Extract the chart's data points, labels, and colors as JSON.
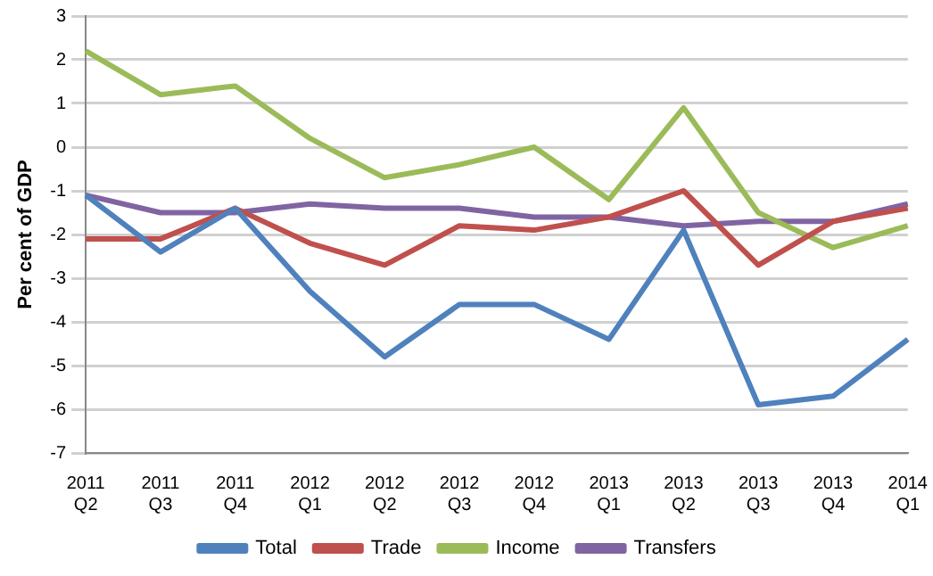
{
  "chart_data": {
    "type": "line",
    "ylabel": "Per cent of GDP",
    "categories": [
      "2011 Q2",
      "2011 Q3",
      "2011 Q4",
      "2012 Q1",
      "2012 Q2",
      "2012 Q3",
      "2012 Q4",
      "2013 Q1",
      "2013 Q2",
      "2013 Q3",
      "2013 Q4",
      "2014 Q1"
    ],
    "series": [
      {
        "name": "Total",
        "color": "#4f81bd",
        "values": [
          -1.1,
          -2.4,
          -1.4,
          -3.3,
          -4.8,
          -3.6,
          -3.6,
          -4.4,
          -1.9,
          -5.9,
          -5.7,
          -4.4
        ]
      },
      {
        "name": "Trade",
        "color": "#c0504d",
        "values": [
          -2.1,
          -2.1,
          -1.4,
          -2.2,
          -2.7,
          -1.8,
          -1.9,
          -1.6,
          -1.0,
          -2.7,
          -1.7,
          -1.4
        ]
      },
      {
        "name": "Income",
        "color": "#9bbb59",
        "values": [
          2.2,
          1.2,
          1.4,
          0.2,
          -0.7,
          -0.4,
          0.0,
          -1.2,
          0.9,
          -1.5,
          -2.3,
          -1.8
        ]
      },
      {
        "name": "Transfers",
        "color": "#8064a2",
        "values": [
          -1.1,
          -1.5,
          -1.5,
          -1.3,
          -1.4,
          -1.4,
          -1.6,
          -1.6,
          -1.8,
          -1.7,
          -1.7,
          -1.3
        ]
      }
    ],
    "ylim": [
      -7,
      3
    ],
    "yticks": [
      -7,
      -6,
      -5,
      -4,
      -3,
      -2,
      -1,
      0,
      1,
      2,
      3
    ],
    "grid": "y",
    "legend": "bottom",
    "marker": "none",
    "line_style": "solid"
  }
}
